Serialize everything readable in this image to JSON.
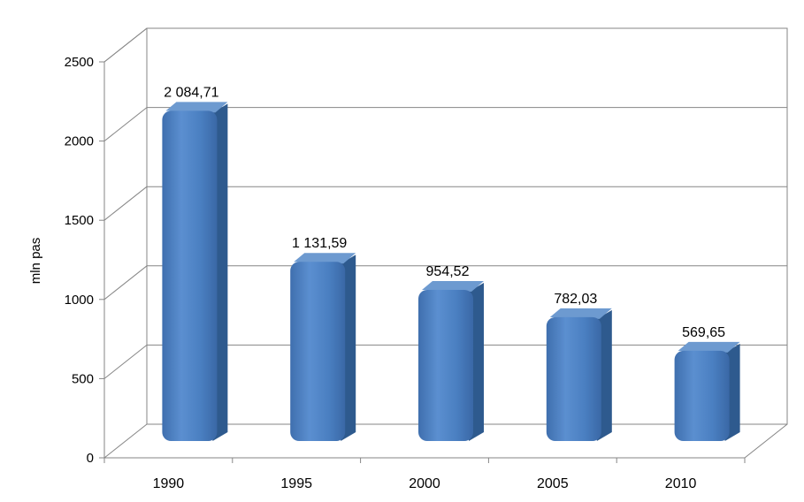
{
  "chart_data": {
    "type": "bar",
    "title": "",
    "xlabel": "",
    "ylabel": "mln pas",
    "categories": [
      "1990",
      "1995",
      "2000",
      "2005",
      "2010"
    ],
    "values": [
      2084.71,
      1131.59,
      954.52,
      782.03,
      569.65
    ],
    "data_labels": [
      "2 084,71",
      "1 131,59",
      "954,52",
      "782,03",
      "569,65"
    ],
    "y_ticks": [
      "0",
      "500",
      "1000",
      "1500",
      "2000",
      "2500"
    ],
    "ylim": [
      0,
      2500
    ],
    "grid": true,
    "legend": "none",
    "bar_color": "#4F81BD",
    "bar_side_color": "#2E5A8E",
    "bar_top_color": "#6D9AD0",
    "style": "3d-column"
  }
}
